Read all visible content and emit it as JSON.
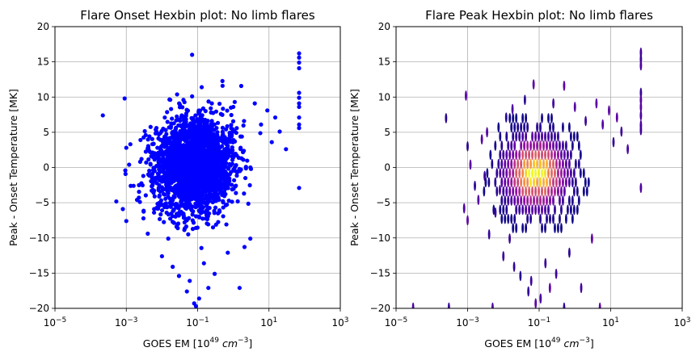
{
  "chart_data": [
    {
      "type": "scatter",
      "title": "Flare Onset Hexbin plot: No limb flares",
      "xlabel": "GOES EM [10^49 cm^-3]",
      "xlabel_base": "GOES EM [10",
      "xlabel_exp": "49",
      "xlabel_unit": "cm",
      "xlabel_unit_exp": "−3",
      "xlabel_close": "]",
      "ylabel": "Peak - Onset Temperature [MK]",
      "xscale": "log",
      "xlim": [
        1e-05,
        1000
      ],
      "ylim": [
        -20,
        20
      ],
      "xticks": [
        1e-05,
        0.001,
        0.1,
        10,
        1000
      ],
      "xtick_labels": [
        {
          "base": "10",
          "exp": "−5"
        },
        {
          "base": "10",
          "exp": "−3"
        },
        {
          "base": "10",
          "exp": "−1"
        },
        {
          "base": "10",
          "exp": "1"
        },
        {
          "base": "10",
          "exp": "3"
        }
      ],
      "yticks": [
        -20,
        -15,
        -10,
        -5,
        0,
        5,
        10,
        15,
        20
      ],
      "ytick_labels": [
        "−20",
        "−15",
        "−10",
        "−5",
        "0",
        "5",
        "10",
        "15",
        "20"
      ],
      "grid": true,
      "color": "#0000ff",
      "core": {
        "center_log10_x": -1.1,
        "center_y": 0.3,
        "spread_log10_x": 0.55,
        "spread_y": 3.2,
        "count": 2600
      },
      "points": [
        {
          "x": 0.00022,
          "y": 7.4
        },
        {
          "x": 0.0009,
          "y": 9.8
        },
        {
          "x": 0.001,
          "y": 2.8
        },
        {
          "x": 0.0012,
          "y": 0.4
        },
        {
          "x": 0.0008,
          "y": -5.9
        },
        {
          "x": 0.001,
          "y": -7.6
        },
        {
          "x": 0.0013,
          "y": 3.3
        },
        {
          "x": 0.0016,
          "y": -2.6
        },
        {
          "x": 0.002,
          "y": -4.6
        },
        {
          "x": 0.0025,
          "y": 3.9
        },
        {
          "x": 0.003,
          "y": -1.2
        },
        {
          "x": 0.0035,
          "y": 4.6
        },
        {
          "x": 0.004,
          "y": -9.4
        },
        {
          "x": 0.005,
          "y": 1.6
        },
        {
          "x": 0.006,
          "y": -6.4
        },
        {
          "x": 0.007,
          "y": 5.1
        },
        {
          "x": 0.008,
          "y": -3.2
        },
        {
          "x": 0.01,
          "y": -12.6
        },
        {
          "x": 0.012,
          "y": 7.1
        },
        {
          "x": 0.015,
          "y": -10.1
        },
        {
          "x": 0.018,
          "y": 8.3
        },
        {
          "x": 0.02,
          "y": -14.1
        },
        {
          "x": 0.03,
          "y": -15.4
        },
        {
          "x": 0.04,
          "y": 9.6
        },
        {
          "x": 0.05,
          "y": -17.6
        },
        {
          "x": 0.06,
          "y": -16.1
        },
        {
          "x": 0.07,
          "y": 10.1
        },
        {
          "x": 0.08,
          "y": -19.3
        },
        {
          "x": 0.09,
          "y": -19.7
        },
        {
          "x": 0.11,
          "y": -18.6
        },
        {
          "x": 0.13,
          "y": 11.4
        },
        {
          "x": 0.15,
          "y": -13.6
        },
        {
          "x": 0.2,
          "y": -17.1
        },
        {
          "x": 0.25,
          "y": 9.1
        },
        {
          "x": 0.3,
          "y": -15.1
        },
        {
          "x": 0.5,
          "y": 11.6
        },
        {
          "x": 0.7,
          "y": -12.1
        },
        {
          "x": 1.0,
          "y": 8.6
        },
        {
          "x": 1.5,
          "y": -17.1
        },
        {
          "x": 2.0,
          "y": 6.6
        },
        {
          "x": 3.0,
          "y": -10.1
        },
        {
          "x": 4.0,
          "y": 9.1
        },
        {
          "x": 6.0,
          "y": 6.1
        },
        {
          "x": 9.0,
          "y": 8.1
        },
        {
          "x": 12.0,
          "y": 3.6
        },
        {
          "x": 15.0,
          "y": 7.1
        },
        {
          "x": 20.0,
          "y": 5.1
        },
        {
          "x": 30.0,
          "y": 2.6
        },
        {
          "x": 0.07,
          "y": 16.0
        },
        {
          "x": 70.0,
          "y": 16.2
        },
        {
          "x": 70.0,
          "y": 15.6
        },
        {
          "x": 70.0,
          "y": 14.9
        },
        {
          "x": 70.0,
          "y": 14.1
        },
        {
          "x": 70.0,
          "y": 10.6
        },
        {
          "x": 70.0,
          "y": 9.9
        },
        {
          "x": 70.0,
          "y": 9.1
        },
        {
          "x": 70.0,
          "y": 8.6
        },
        {
          "x": 70.0,
          "y": 7.1
        },
        {
          "x": 70.0,
          "y": 6.1
        },
        {
          "x": 70.0,
          "y": 5.6
        },
        {
          "x": 70.0,
          "y": -2.9
        }
      ]
    },
    {
      "type": "heatmap",
      "title": "Flare Peak Hexbin plot: No limb flares",
      "xlabel": "GOES EM [10^49 cm^-3]",
      "xlabel_base": "GOES EM [10",
      "xlabel_exp": "49",
      "xlabel_unit": "cm",
      "xlabel_unit_exp": "−3",
      "xlabel_close": "]",
      "ylabel": "Peak - Onset Temperature [MK]",
      "xscale": "log",
      "xlim": [
        1e-05,
        1000
      ],
      "ylim": [
        -20,
        20
      ],
      "xticks": [
        1e-05,
        0.001,
        0.1,
        10,
        1000
      ],
      "xtick_labels": [
        {
          "base": "10",
          "exp": "−5"
        },
        {
          "base": "10",
          "exp": "−3"
        },
        {
          "base": "10",
          "exp": "−1"
        },
        {
          "base": "10",
          "exp": "1"
        },
        {
          "base": "10",
          "exp": "3"
        }
      ],
      "yticks": [
        -20,
        -15,
        -10,
        -5,
        0,
        5,
        10,
        15,
        20
      ],
      "ytick_labels": [
        "−20",
        "−15",
        "−10",
        "−5",
        "0",
        "5",
        "10",
        "15",
        "20"
      ],
      "grid": true,
      "colormap": "plasma",
      "colormap_stops": [
        "#0d0887",
        "#5302a3",
        "#8b0aa5",
        "#b83289",
        "#db5c68",
        "#f48849",
        "#febc2a",
        "#f0f921"
      ],
      "peak": {
        "log10_x": -1.1,
        "y": -0.8
      },
      "bin_size": {
        "log10_x": 0.09,
        "y": 1.3
      },
      "density": {
        "spread_log10_x": 0.6,
        "spread_y": 3.4
      },
      "sparse_bins": [
        {
          "x": 0.00025,
          "y": 7.0
        },
        {
          "x": 0.0009,
          "y": 10.2
        },
        {
          "x": 0.001,
          "y": 3.0
        },
        {
          "x": 0.0012,
          "y": 0.4
        },
        {
          "x": 0.0008,
          "y": -5.8
        },
        {
          "x": 0.001,
          "y": -7.5
        },
        {
          "x": 0.0016,
          "y": -2.6
        },
        {
          "x": 0.002,
          "y": -4.6
        },
        {
          "x": 0.0025,
          "y": 4.0
        },
        {
          "x": 0.003,
          "y": -1.2
        },
        {
          "x": 0.0035,
          "y": 5.0
        },
        {
          "x": 0.004,
          "y": -9.5
        },
        {
          "x": 0.006,
          "y": -6.4
        },
        {
          "x": 0.008,
          "y": -3.2
        },
        {
          "x": 0.01,
          "y": -12.6
        },
        {
          "x": 0.012,
          "y": 7.1
        },
        {
          "x": 0.015,
          "y": -10.1
        },
        {
          "x": 0.018,
          "y": 8.3
        },
        {
          "x": 0.02,
          "y": -14.1
        },
        {
          "x": 0.03,
          "y": -15.4
        },
        {
          "x": 0.04,
          "y": 9.6
        },
        {
          "x": 0.05,
          "y": -17.6
        },
        {
          "x": 0.06,
          "y": -16.1
        },
        {
          "x": 0.07,
          "y": 11.8
        },
        {
          "x": 0.08,
          "y": -19.3
        },
        {
          "x": 0.11,
          "y": -18.6
        },
        {
          "x": 0.15,
          "y": -13.6
        },
        {
          "x": 0.2,
          "y": -17.1
        },
        {
          "x": 0.25,
          "y": 9.1
        },
        {
          "x": 0.3,
          "y": -15.1
        },
        {
          "x": 0.5,
          "y": 11.6
        },
        {
          "x": 0.7,
          "y": -12.1
        },
        {
          "x": 1.0,
          "y": 8.6
        },
        {
          "x": 1.5,
          "y": -17.1
        },
        {
          "x": 2.0,
          "y": 6.6
        },
        {
          "x": 3.0,
          "y": -10.1
        },
        {
          "x": 4.0,
          "y": 9.1
        },
        {
          "x": 6.0,
          "y": 6.1
        },
        {
          "x": 9.0,
          "y": 8.1
        },
        {
          "x": 12.0,
          "y": 3.6
        },
        {
          "x": 15.0,
          "y": 7.1
        },
        {
          "x": 20.0,
          "y": 5.1
        },
        {
          "x": 30.0,
          "y": 2.6
        },
        {
          "x": 3e-05,
          "y": -19.9
        },
        {
          "x": 0.0003,
          "y": -19.9
        },
        {
          "x": 0.005,
          "y": -19.9
        },
        {
          "x": 0.5,
          "y": -19.9
        },
        {
          "x": 5.0,
          "y": -19.9
        },
        {
          "x": 70.0,
          "y": 16.3
        },
        {
          "x": 70.0,
          "y": 15.4
        },
        {
          "x": 70.0,
          "y": 14.5
        },
        {
          "x": 70.0,
          "y": 10.6
        },
        {
          "x": 70.0,
          "y": 9.6
        },
        {
          "x": 70.0,
          "y": 8.6
        },
        {
          "x": 70.0,
          "y": 7.4
        },
        {
          "x": 70.0,
          "y": 6.0
        },
        {
          "x": 70.0,
          "y": 5.3
        },
        {
          "x": 70.0,
          "y": -2.9
        }
      ]
    }
  ]
}
